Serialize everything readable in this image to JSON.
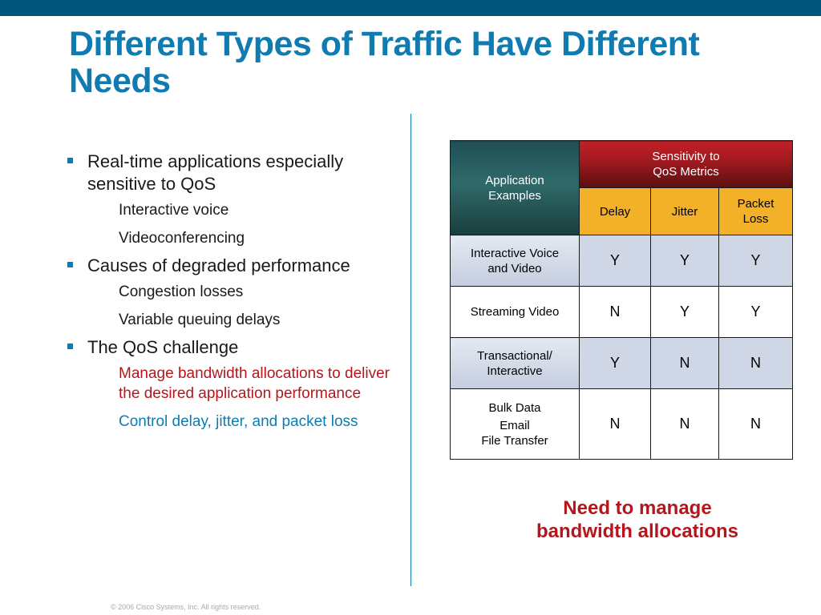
{
  "slide": {
    "title": "Different Types of Traffic Have Different Needs",
    "colors": {
      "title": "#0f7bb0",
      "top_bar": "#00557a",
      "accent_red": "#b5161c",
      "header_red": "#a31a1f",
      "header_gold": "#f3b12a",
      "header_teal": "#2f6a6a"
    }
  },
  "bullets": [
    {
      "text": "Real-time applications especially sensitive to QoS",
      "subitems": [
        {
          "text": "Interactive voice"
        },
        {
          "text": "Videoconferencing"
        }
      ]
    },
    {
      "text": "Causes of degraded performance",
      "subitems": [
        {
          "text": "Congestion losses"
        },
        {
          "text": "Variable queuing delays"
        }
      ]
    },
    {
      "text": "The QoS challenge",
      "subitems": [
        {
          "text": "Manage bandwidth allocations to deliver the desired application performance"
        },
        {
          "text": "Control delay, jitter, and packet loss"
        }
      ]
    }
  ],
  "table": {
    "header": {
      "app_line1": "Application",
      "app_line2": "Examples",
      "sens_line1": "Sensitivity to",
      "sens_line2": "QoS Metrics",
      "metrics": [
        "Delay",
        "Jitter",
        "Packet Loss"
      ]
    },
    "rows": [
      {
        "app_lines": [
          "Interactive Voice",
          "and Video"
        ],
        "values": [
          "Y",
          "Y",
          "Y"
        ]
      },
      {
        "app_lines": [
          "Streaming Video"
        ],
        "values": [
          "N",
          "Y",
          "Y"
        ]
      },
      {
        "app_lines": [
          "Transactional/",
          "Interactive"
        ],
        "values": [
          "Y",
          "N",
          "N"
        ]
      },
      {
        "app_lines": [
          "Bulk Data",
          "Email",
          "File Transfer"
        ],
        "values": [
          "N",
          "N",
          "N"
        ]
      }
    ]
  },
  "callout": {
    "line1": "Need to manage",
    "line2": "bandwidth allocations"
  },
  "footer": {
    "copyright": "© 2006 Cisco Systems, Inc. All rights reserved."
  }
}
